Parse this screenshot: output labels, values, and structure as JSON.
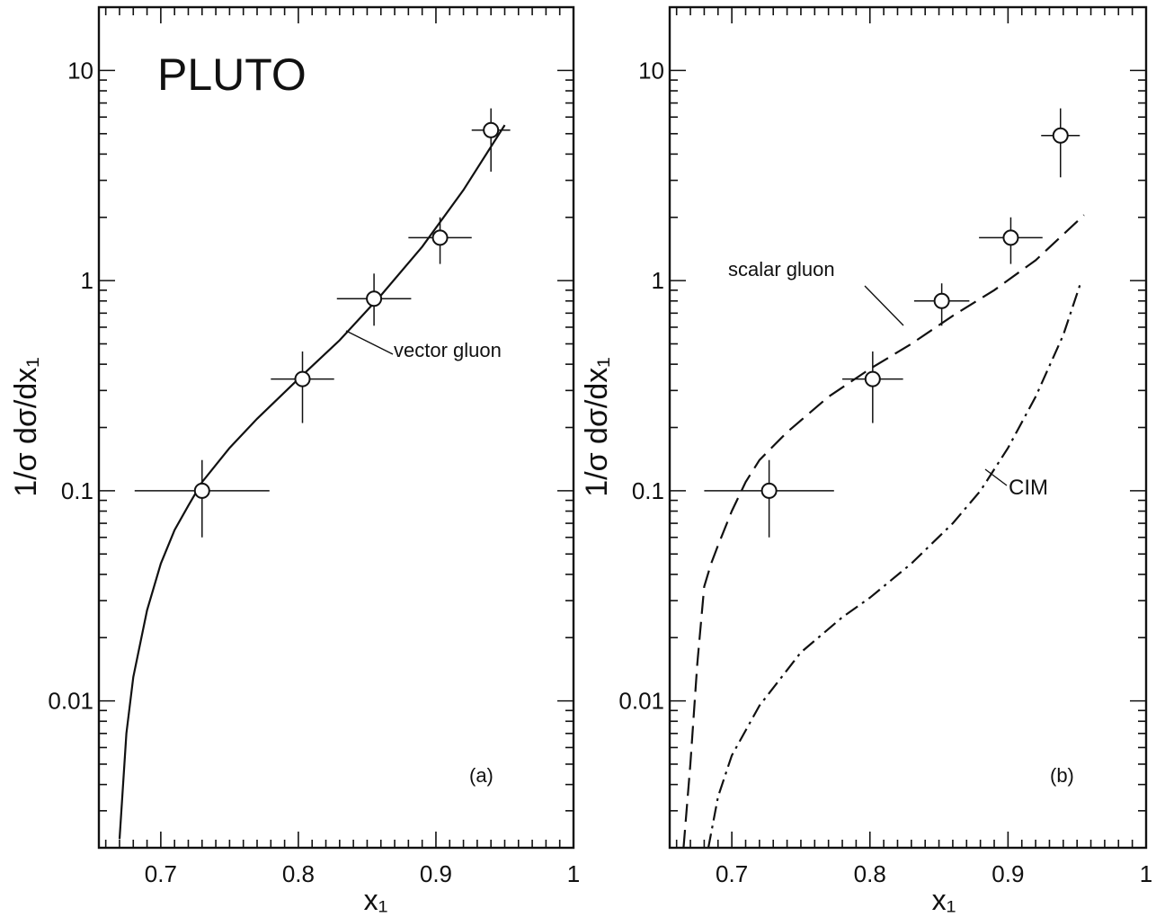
{
  "chart_data": [
    {
      "panel": "a",
      "type": "scatter",
      "title": "PLUTO",
      "panel_label": "(a)",
      "xlabel": "x₁",
      "ylabel": "1/σ dσ/dx₁",
      "xlim": [
        0.655,
        1.0
      ],
      "ylim": [
        0.002,
        20
      ],
      "yscale": "log",
      "grid": false,
      "x_ticks": [
        0.7,
        0.8,
        0.9,
        1.0
      ],
      "x_tick_labels": [
        "0.7",
        "0.8",
        "0.9",
        "1"
      ],
      "y_ticks": [
        0.01,
        0.1,
        1,
        10
      ],
      "y_tick_labels": [
        "0.01",
        "0.1",
        "1",
        "10"
      ],
      "points": [
        {
          "x": 0.73,
          "y": 0.1,
          "xerr": [
            0.049,
            0.049
          ],
          "yerr": [
            0.06,
            0.14
          ]
        },
        {
          "x": 0.803,
          "y": 0.34,
          "xerr": [
            0.023,
            0.023
          ],
          "yerr": [
            0.21,
            0.46
          ]
        },
        {
          "x": 0.855,
          "y": 0.82,
          "xerr": [
            0.027,
            0.027
          ],
          "yerr": [
            0.61,
            1.08
          ]
        },
        {
          "x": 0.903,
          "y": 1.6,
          "xerr": [
            0.023,
            0.023
          ],
          "yerr": [
            1.2,
            2.0
          ]
        },
        {
          "x": 0.94,
          "y": 5.2,
          "xerr": [
            0.014,
            0.014
          ],
          "yerr": [
            3.3,
            6.6
          ]
        }
      ],
      "series": [
        {
          "name": "vector gluon",
          "style": "solid",
          "x": [
            0.67,
            0.675,
            0.68,
            0.69,
            0.7,
            0.71,
            0.72,
            0.73,
            0.75,
            0.77,
            0.8,
            0.83,
            0.86,
            0.89,
            0.92,
            0.95
          ],
          "y": [
            0.0022,
            0.007,
            0.013,
            0.027,
            0.045,
            0.065,
            0.085,
            0.11,
            0.16,
            0.22,
            0.34,
            0.52,
            0.85,
            1.45,
            2.7,
            5.5
          ]
        }
      ]
    },
    {
      "panel": "b",
      "type": "scatter",
      "panel_label": "(b)",
      "xlabel": "x₁",
      "ylabel": "1/σ dσ/dx₁",
      "xlim": [
        0.655,
        1.0
      ],
      "ylim": [
        0.002,
        20
      ],
      "yscale": "log",
      "grid": false,
      "x_ticks": [
        0.7,
        0.8,
        0.9,
        1.0
      ],
      "x_tick_labels": [
        "0.7",
        "0.8",
        "0.9",
        "1"
      ],
      "y_ticks": [
        0.01,
        0.1,
        1,
        10
      ],
      "y_tick_labels": [
        "0.01",
        "0.1",
        "1",
        "10"
      ],
      "points": [
        {
          "x": 0.727,
          "y": 0.1,
          "xerr": [
            0.047,
            0.047
          ],
          "yerr": [
            0.06,
            0.14
          ]
        },
        {
          "x": 0.802,
          "y": 0.34,
          "xerr": [
            0.022,
            0.022
          ],
          "yerr": [
            0.21,
            0.46
          ]
        },
        {
          "x": 0.852,
          "y": 0.8,
          "xerr": [
            0.02,
            0.02
          ],
          "yerr": [
            0.61,
            0.97
          ]
        },
        {
          "x": 0.902,
          "y": 1.6,
          "xerr": [
            0.023,
            0.023
          ],
          "yerr": [
            1.2,
            2.0
          ]
        },
        {
          "x": 0.938,
          "y": 4.9,
          "xerr": [
            0.014,
            0.014
          ],
          "yerr": [
            3.1,
            6.6
          ]
        }
      ],
      "series": [
        {
          "name": "scalar gluon",
          "style": "dashed",
          "x": [
            0.665,
            0.67,
            0.675,
            0.68,
            0.685,
            0.69,
            0.7,
            0.71,
            0.72,
            0.74,
            0.77,
            0.8,
            0.83,
            0.86,
            0.89,
            0.92,
            0.955
          ],
          "y": [
            0.002,
            0.005,
            0.015,
            0.035,
            0.045,
            0.055,
            0.08,
            0.11,
            0.14,
            0.19,
            0.28,
            0.38,
            0.5,
            0.68,
            0.9,
            1.25,
            2.05
          ]
        },
        {
          "name": "CIM",
          "style": "dashdot",
          "x": [
            0.683,
            0.69,
            0.7,
            0.72,
            0.75,
            0.78,
            0.8,
            0.83,
            0.86,
            0.88,
            0.9,
            0.92,
            0.94,
            0.952
          ],
          "y": [
            0.002,
            0.0035,
            0.0055,
            0.0095,
            0.017,
            0.025,
            0.031,
            0.045,
            0.07,
            0.1,
            0.16,
            0.28,
            0.55,
            0.95
          ]
        }
      ]
    }
  ]
}
